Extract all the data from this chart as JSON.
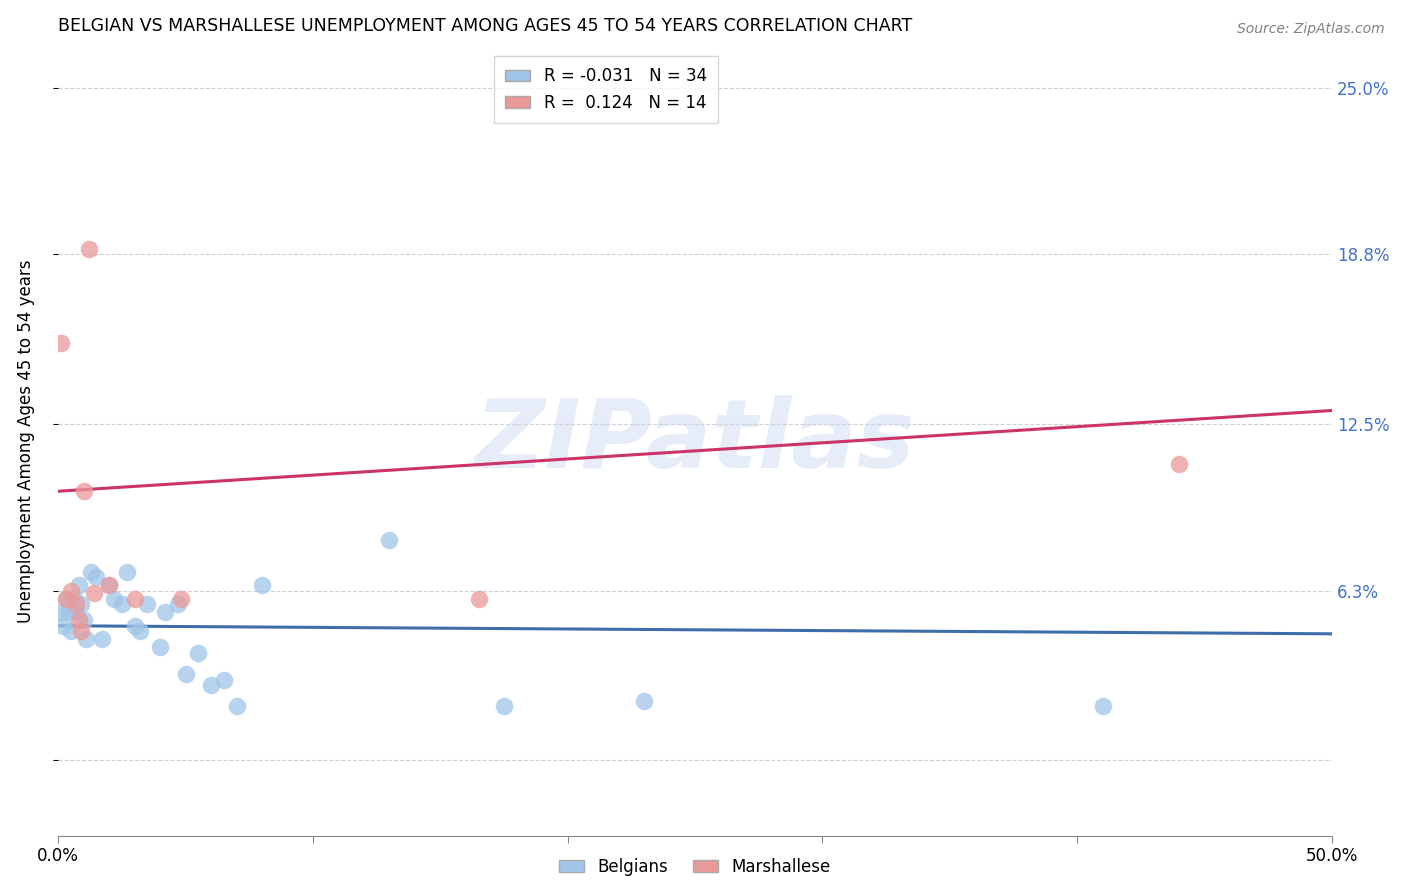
{
  "title": "BELGIAN VS MARSHALLESE UNEMPLOYMENT AMONG AGES 45 TO 54 YEARS CORRELATION CHART",
  "source": "Source: ZipAtlas.com",
  "ylabel": "Unemployment Among Ages 45 to 54 years",
  "xlim": [
    0.0,
    0.5
  ],
  "ylim": [
    -0.028,
    0.265
  ],
  "yticks": [
    0.0,
    0.063,
    0.125,
    0.188,
    0.25
  ],
  "ytick_labels": [
    "",
    "6.3%",
    "12.5%",
    "18.8%",
    "25.0%"
  ],
  "xticks": [
    0.0,
    0.1,
    0.2,
    0.3,
    0.4,
    0.5
  ],
  "xtick_labels": [
    "0.0%",
    "",
    "",
    "",
    "",
    "50.0%"
  ],
  "belgian_color": "#9fc5e8",
  "marshallese_color": "#ea9999",
  "belgian_line_color": "#3d6eaa",
  "marshallese_line_color": "#cc3366",
  "legend_R_belgian": "-0.031",
  "legend_N_belgian": "34",
  "legend_R_marshallese": "0.124",
  "legend_N_marshallese": "14",
  "watermark": "ZIPatlas",
  "background_color": "#ffffff",
  "belgian_x": [
    0.001,
    0.002,
    0.003,
    0.004,
    0.005,
    0.006,
    0.007,
    0.008,
    0.009,
    0.01,
    0.011,
    0.013,
    0.015,
    0.017,
    0.02,
    0.022,
    0.025,
    0.027,
    0.03,
    0.032,
    0.035,
    0.04,
    0.042,
    0.047,
    0.05,
    0.055,
    0.06,
    0.065,
    0.07,
    0.08,
    0.13,
    0.175,
    0.23,
    0.41
  ],
  "belgian_y": [
    0.055,
    0.05,
    0.06,
    0.055,
    0.048,
    0.06,
    0.055,
    0.065,
    0.058,
    0.052,
    0.045,
    0.07,
    0.068,
    0.045,
    0.065,
    0.06,
    0.058,
    0.07,
    0.05,
    0.048,
    0.058,
    0.042,
    0.055,
    0.058,
    0.032,
    0.04,
    0.028,
    0.03,
    0.02,
    0.065,
    0.082,
    0.02,
    0.022,
    0.02
  ],
  "marshallese_x": [
    0.001,
    0.003,
    0.005,
    0.007,
    0.008,
    0.009,
    0.01,
    0.012,
    0.014,
    0.02,
    0.03,
    0.048,
    0.165,
    0.44
  ],
  "marshallese_y": [
    0.155,
    0.06,
    0.063,
    0.058,
    0.052,
    0.048,
    0.1,
    0.19,
    0.062,
    0.065,
    0.06,
    0.06,
    0.06,
    0.11
  ],
  "belgian_line_y0": 0.05,
  "belgian_line_y1": 0.047,
  "marshallese_line_y0": 0.1,
  "marshallese_line_y1": 0.13,
  "grid_color": "#cccccc",
  "right_tick_color": "#4472c4",
  "title_fontsize": 12.5,
  "source_fontsize": 10,
  "axis_fontsize": 12,
  "legend_fontsize": 12
}
